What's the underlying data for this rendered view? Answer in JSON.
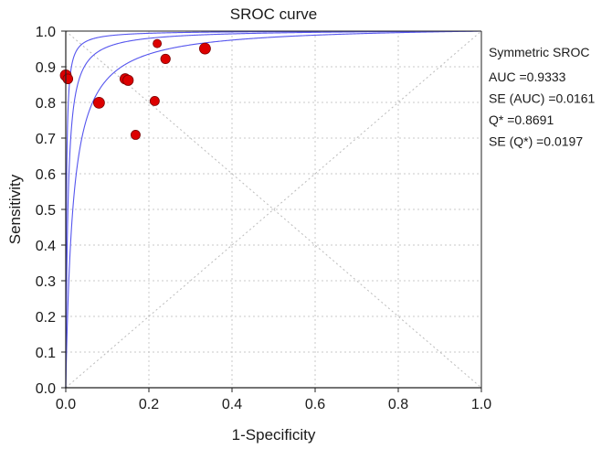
{
  "chart_data": {
    "type": "scatter",
    "title": "SROC curve",
    "xlabel": "1-Specificity",
    "ylabel": "Sensitivity",
    "xlim": [
      0,
      1
    ],
    "ylim": [
      0,
      1
    ],
    "xticks": [
      "0.0",
      "0.2",
      "0.4",
      "0.6",
      "0.8",
      "1.0"
    ],
    "yticks": [
      "0.0",
      "0.1",
      "0.2",
      "0.3",
      "0.4",
      "0.5",
      "0.6",
      "0.7",
      "0.8",
      "0.9",
      "1.0"
    ],
    "grid": true,
    "points": [
      {
        "x": 0.0,
        "y": 0.876,
        "weight": 1.0
      },
      {
        "x": 0.005,
        "y": 0.866,
        "weight": 0.8
      },
      {
        "x": 0.08,
        "y": 0.799,
        "weight": 1.0
      },
      {
        "x": 0.143,
        "y": 0.866,
        "weight": 0.9
      },
      {
        "x": 0.15,
        "y": 0.862,
        "weight": 0.9
      },
      {
        "x": 0.168,
        "y": 0.709,
        "weight": 0.7
      },
      {
        "x": 0.214,
        "y": 0.804,
        "weight": 0.7
      },
      {
        "x": 0.22,
        "y": 0.965,
        "weight": 0.55
      },
      {
        "x": 0.24,
        "y": 0.922,
        "weight": 0.75
      },
      {
        "x": 0.335,
        "y": 0.951,
        "weight": 1.0
      }
    ],
    "curves": [
      {
        "name": "SROC",
        "dor": 193
      },
      {
        "name": "upper bound",
        "dor": 650
      },
      {
        "name": "lower bound",
        "dor": 58
      }
    ],
    "reference_lines": [
      "diagonal",
      "anti-diagonal"
    ],
    "annotation": {
      "heading": "Symmetric SROC",
      "lines": [
        "AUC =0.9333",
        "SE (AUC) =0.0161",
        "Q* =0.8691",
        "SE (Q*) =0.0197"
      ]
    },
    "colors": {
      "curve": "#5555ee",
      "point_fill": "#dd0000",
      "point_stroke": "#7a0000",
      "grid": "#c8c8c8",
      "reference": "#bbbbbb",
      "axis": "#222222"
    }
  }
}
